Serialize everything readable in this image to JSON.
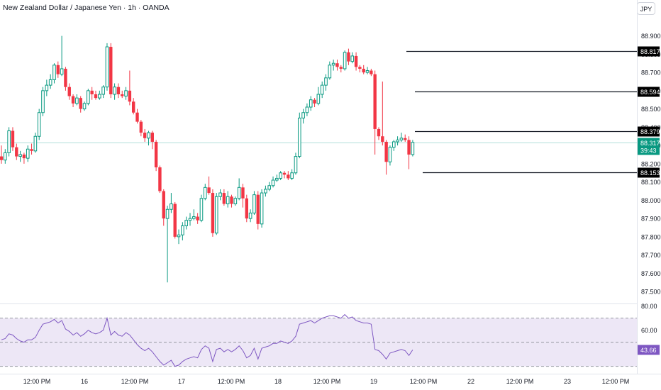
{
  "header": {
    "title": "New Zealand Dollar / Japanese Yen · 1h · OANDA",
    "currency_button": "JPY"
  },
  "colors": {
    "up": "#089981",
    "down": "#f23645",
    "rsi_line": "#7e57c2",
    "rsi_band": "#ede7f6",
    "current_price_line": "#b2dfdb"
  },
  "chart_data": [
    {
      "type": "candlestick",
      "title": "New Zealand Dollar / Japanese Yen · 1h · OANDA",
      "price_ticks": [
        "88.900",
        "88.800",
        "88.700",
        "88.600",
        "88.500",
        "88.400",
        "88.300",
        "88.200",
        "88.100",
        "88.000",
        "87.900",
        "87.800",
        "87.700",
        "87.600",
        "87.500"
      ],
      "ylim": [
        87.45,
        88.98
      ],
      "time_ticks": [
        "12:00 PM",
        "16",
        "12:00 PM",
        "17",
        "12:00 PM",
        "18",
        "12:00 PM",
        "19",
        "12:00 PM",
        "22",
        "12:00 PM",
        "23",
        "12:00 PM"
      ],
      "horizontal_levels": [
        {
          "value": 88.817,
          "label": "88.817"
        },
        {
          "value": 88.594,
          "label": "88.594"
        },
        {
          "value": 88.379,
          "label": "88.379"
        },
        {
          "value": 88.153,
          "label": "88.153"
        }
      ],
      "current_price": {
        "value": 88.317,
        "label": "88.317",
        "countdown": "39:43"
      },
      "candles": [
        [
          88.24,
          88.22,
          88.3,
          88.2
        ],
        [
          88.22,
          88.26,
          88.28,
          88.2
        ],
        [
          88.26,
          88.38,
          88.4,
          88.24
        ],
        [
          88.38,
          88.29,
          88.4,
          88.27
        ],
        [
          88.29,
          88.24,
          88.31,
          88.22
        ],
        [
          88.24,
          88.25,
          88.27,
          88.21
        ],
        [
          88.25,
          88.23,
          88.26,
          88.2
        ],
        [
          88.23,
          88.28,
          88.3,
          88.21
        ],
        [
          88.28,
          88.27,
          88.31,
          88.25
        ],
        [
          88.27,
          88.35,
          88.37,
          88.26
        ],
        [
          88.35,
          88.48,
          88.5,
          88.33
        ],
        [
          88.48,
          88.6,
          88.62,
          88.46
        ],
        [
          88.6,
          88.63,
          88.66,
          88.57
        ],
        [
          88.63,
          88.66,
          88.69,
          88.61
        ],
        [
          88.66,
          88.74,
          88.75,
          88.64
        ],
        [
          88.74,
          88.69,
          88.76,
          88.67
        ],
        [
          88.69,
          88.72,
          88.9,
          88.68
        ],
        [
          88.72,
          88.62,
          88.73,
          88.6
        ],
        [
          88.62,
          88.57,
          88.64,
          88.55
        ],
        [
          88.57,
          88.53,
          88.58,
          88.51
        ],
        [
          88.53,
          88.56,
          88.58,
          88.52
        ],
        [
          88.56,
          88.5,
          88.57,
          88.48
        ],
        [
          88.5,
          88.53,
          88.54,
          88.49
        ],
        [
          88.53,
          88.6,
          88.61,
          88.52
        ],
        [
          88.6,
          88.58,
          88.62,
          88.55
        ],
        [
          88.58,
          88.56,
          88.6,
          88.55
        ],
        [
          88.56,
          88.58,
          88.6,
          88.55
        ],
        [
          88.58,
          88.62,
          88.63,
          88.56
        ],
        [
          88.62,
          88.84,
          88.86,
          88.6
        ],
        [
          88.84,
          88.58,
          88.86,
          88.56
        ],
        [
          88.58,
          88.62,
          88.64,
          88.55
        ],
        [
          88.62,
          88.58,
          88.64,
          88.56
        ],
        [
          88.58,
          88.57,
          88.6,
          88.56
        ],
        [
          88.57,
          88.6,
          88.62,
          88.55
        ],
        [
          88.6,
          88.54,
          88.71,
          88.52
        ],
        [
          88.54,
          88.48,
          88.56,
          88.47
        ],
        [
          88.48,
          88.43,
          88.5,
          88.42
        ],
        [
          88.43,
          88.37,
          88.44,
          88.35
        ],
        [
          88.37,
          88.34,
          88.39,
          88.32
        ],
        [
          88.34,
          88.37,
          88.38,
          88.3
        ],
        [
          88.37,
          88.32,
          88.38,
          88.28
        ],
        [
          88.32,
          88.18,
          88.33,
          88.16
        ],
        [
          88.18,
          88.05,
          88.19,
          88.04
        ],
        [
          88.05,
          87.9,
          88.06,
          87.86
        ],
        [
          87.9,
          87.95,
          87.97,
          87.55
        ],
        [
          87.95,
          87.98,
          88.04,
          87.93
        ],
        [
          87.98,
          87.8,
          87.99,
          87.79
        ],
        [
          87.8,
          87.81,
          87.84,
          87.76
        ],
        [
          87.81,
          87.86,
          87.88,
          87.78
        ],
        [
          87.86,
          87.89,
          87.91,
          87.84
        ],
        [
          87.89,
          87.9,
          87.93,
          87.86
        ],
        [
          87.9,
          87.91,
          87.95,
          87.89
        ],
        [
          87.91,
          87.89,
          87.93,
          87.87
        ],
        [
          87.89,
          88.01,
          88.03,
          87.88
        ],
        [
          88.01,
          88.07,
          88.09,
          88.0
        ],
        [
          88.07,
          88.04,
          88.13,
          88.03
        ],
        [
          88.04,
          87.82,
          88.06,
          87.8
        ],
        [
          87.82,
          88.02,
          88.04,
          87.81
        ],
        [
          88.02,
          88.04,
          88.06,
          88.0
        ],
        [
          88.04,
          87.98,
          88.06,
          87.97
        ],
        [
          87.98,
          88.02,
          88.05,
          87.96
        ],
        [
          88.02,
          87.98,
          88.03,
          87.96
        ],
        [
          87.98,
          88.01,
          88.02,
          87.97
        ],
        [
          88.01,
          88.07,
          88.12,
          88.0
        ],
        [
          88.07,
          88.01,
          88.09,
          87.96
        ],
        [
          88.01,
          87.9,
          88.03,
          87.88
        ],
        [
          87.9,
          87.93,
          87.95,
          87.88
        ],
        [
          87.93,
          88.03,
          88.05,
          87.92
        ],
        [
          88.03,
          87.87,
          88.05,
          87.84
        ],
        [
          87.87,
          88.04,
          88.06,
          87.85
        ],
        [
          88.04,
          88.06,
          88.08,
          88.02
        ],
        [
          88.06,
          88.08,
          88.1,
          88.05
        ],
        [
          88.08,
          88.11,
          88.13,
          88.07
        ],
        [
          88.11,
          88.12,
          88.14,
          88.1
        ],
        [
          88.12,
          88.15,
          88.16,
          88.11
        ],
        [
          88.15,
          88.14,
          88.16,
          88.12
        ],
        [
          88.14,
          88.12,
          88.16,
          88.11
        ],
        [
          88.12,
          88.15,
          88.17,
          88.11
        ],
        [
          88.15,
          88.24,
          88.26,
          88.14
        ],
        [
          88.24,
          88.45,
          88.48,
          88.23
        ],
        [
          88.45,
          88.48,
          88.5,
          88.42
        ],
        [
          88.48,
          88.51,
          88.53,
          88.46
        ],
        [
          88.51,
          88.55,
          88.57,
          88.49
        ],
        [
          88.55,
          88.53,
          88.56,
          88.51
        ],
        [
          88.53,
          88.58,
          88.62,
          88.52
        ],
        [
          88.58,
          88.63,
          88.65,
          88.56
        ],
        [
          88.63,
          88.67,
          88.69,
          88.6
        ],
        [
          88.67,
          88.74,
          88.76,
          88.66
        ],
        [
          88.74,
          88.75,
          88.77,
          88.71
        ],
        [
          88.75,
          88.73,
          88.77,
          88.71
        ],
        [
          88.73,
          88.72,
          88.74,
          88.7
        ],
        [
          88.72,
          88.81,
          88.82,
          88.71
        ],
        [
          88.81,
          88.76,
          88.83,
          88.74
        ],
        [
          88.76,
          88.79,
          88.81,
          88.75
        ],
        [
          88.79,
          88.73,
          88.81,
          88.71
        ],
        [
          88.73,
          88.72,
          88.74,
          88.7
        ],
        [
          88.72,
          88.7,
          88.74,
          88.69
        ],
        [
          88.7,
          88.71,
          88.73,
          88.69
        ],
        [
          88.71,
          88.69,
          88.72,
          88.68
        ],
        [
          88.69,
          88.39,
          88.71,
          88.25
        ],
        [
          88.39,
          88.35,
          88.4,
          88.33
        ],
        [
          88.35,
          88.32,
          88.65,
          88.3
        ],
        [
          88.32,
          88.21,
          88.33,
          88.14
        ],
        [
          88.21,
          88.29,
          88.3,
          88.19
        ],
        [
          88.29,
          88.32,
          88.33,
          88.27
        ],
        [
          88.32,
          88.33,
          88.35,
          88.3
        ],
        [
          88.33,
          88.34,
          88.37,
          88.32
        ],
        [
          88.34,
          88.33,
          88.36,
          88.32
        ],
        [
          88.33,
          88.25,
          88.35,
          88.17
        ],
        [
          88.25,
          88.317,
          88.33,
          88.24
        ]
      ]
    },
    {
      "type": "line",
      "indicator": "RSI",
      "levels": {
        "upper": 70,
        "mid": 50,
        "lower": 30
      },
      "ticks": [
        "80.00",
        "60.00"
      ],
      "ylim": [
        28,
        81
      ],
      "current": {
        "value": 43.66,
        "label": "43.66"
      },
      "values": [
        52,
        53,
        57,
        56,
        53,
        51,
        50,
        52,
        52,
        54,
        60,
        65,
        66,
        67,
        69,
        66,
        68,
        61,
        59,
        56,
        58,
        55,
        57,
        60,
        58,
        57,
        58,
        60,
        70,
        56,
        59,
        56,
        55,
        58,
        56,
        52,
        48,
        45,
        43,
        45,
        42,
        38,
        34,
        31,
        33,
        35,
        30,
        31,
        34,
        36,
        37,
        38,
        37,
        44,
        47,
        45,
        34,
        44,
        45,
        42,
        44,
        42,
        44,
        47,
        43,
        37,
        39,
        45,
        36,
        45,
        46,
        47,
        49,
        49,
        51,
        50,
        49,
        51,
        55,
        65,
        66,
        67,
        68,
        66,
        68,
        70,
        71,
        72,
        72,
        71,
        70,
        73,
        70,
        71,
        68,
        67,
        66,
        66,
        65,
        44,
        43,
        40,
        36,
        41,
        42,
        43,
        44,
        43,
        39,
        43.66
      ]
    }
  ]
}
